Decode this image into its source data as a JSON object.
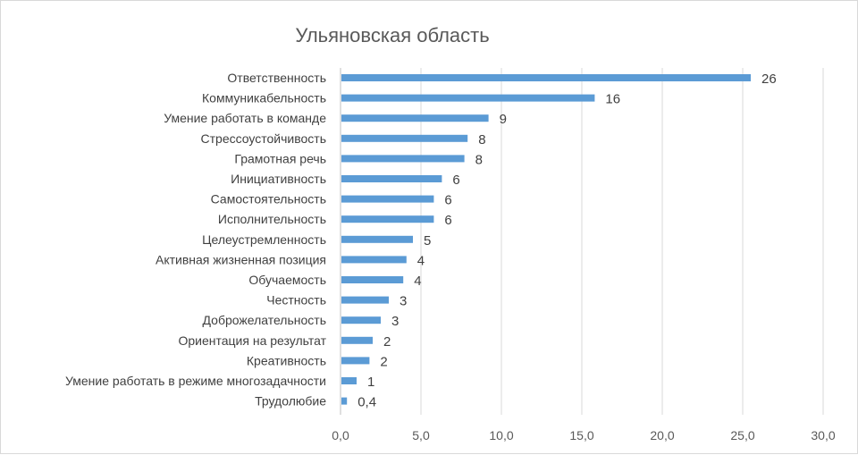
{
  "chart_data": {
    "type": "bar",
    "orientation": "horizontal",
    "title": "Ульяновская область",
    "categories": [
      "Ответственность",
      "Коммуникабельность",
      "Умение работать в команде",
      "Стрессоустойчивость",
      "Грамотная речь",
      "Инициативность",
      "Самостоятельность",
      "Исполнительность",
      "Целеустремленность",
      "Активная жизненная позиция",
      "Обучаемость",
      "Честность",
      "Доброжелательность",
      "Ориентация на результат",
      "Креативность",
      "Умение работать в режиме многозадачности",
      "Трудолюбие"
    ],
    "values": [
      25.5,
      15.8,
      9.2,
      7.9,
      7.7,
      6.3,
      5.8,
      5.8,
      4.5,
      4.1,
      3.9,
      3.0,
      2.5,
      2.0,
      1.8,
      1.0,
      0.4
    ],
    "value_labels": [
      "26",
      "16",
      "9",
      "8",
      "8",
      "6",
      "6",
      "6",
      "5",
      "4",
      "4",
      "3",
      "3",
      "2",
      "2",
      "1",
      "0,4"
    ],
    "xlim": [
      0,
      30
    ],
    "ticks": [
      0,
      5,
      10,
      15,
      20,
      25,
      30
    ],
    "tick_labels": [
      "0,0",
      "5,0",
      "10,0",
      "15,0",
      "20,0",
      "25,0",
      "30,0"
    ],
    "xlabel": "",
    "ylabel": "",
    "grid": true,
    "legend": "none",
    "colors": {
      "bar": "#5b9bd5",
      "grid": "#d9d9d9",
      "text": "#404040"
    }
  }
}
